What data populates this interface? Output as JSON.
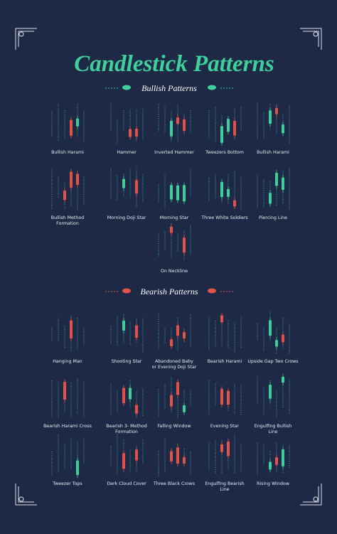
{
  "title": "Candlestick Patterns",
  "sections": [
    {
      "heading": "Bullish Patterns",
      "patterns": [
        [
          "Bullish Harami"
        ],
        [
          "Hammer"
        ],
        [
          "Inverted Hammer"
        ],
        [
          "Tweezers Bottom"
        ],
        [
          "Bullish Harami"
        ],
        [
          "Bullish Method",
          "Formation"
        ],
        [
          "Morning Doji Star"
        ],
        [
          "Morning Star"
        ],
        [
          "Three White Soldiers"
        ],
        [
          "Piercing Line"
        ],
        [
          "On Neckline"
        ]
      ]
    },
    {
      "heading": "Bearish Patterns",
      "patterns": [
        [
          "Hanging Man"
        ],
        [
          "Shooting Star"
        ],
        [
          "Abandoned Baby",
          "or Evening Doji Star"
        ],
        [
          "Bearish Harami"
        ],
        [
          "Upside Gap Two Crows"
        ],
        [
          "Bearish Harami Cross"
        ],
        [
          "Bearish 3- Method",
          "Formation"
        ],
        [
          "Falling Window"
        ],
        [
          "Evening Star"
        ],
        [
          "Engulfing Bullish",
          "Line"
        ],
        [
          "Tweezer Tops"
        ],
        [
          "Dark Cloud Cover"
        ],
        [
          "Three Black Crows"
        ],
        [
          "Engulfing Bearish",
          "Line"
        ],
        [
          "Rising Window"
        ]
      ]
    }
  ]
}
